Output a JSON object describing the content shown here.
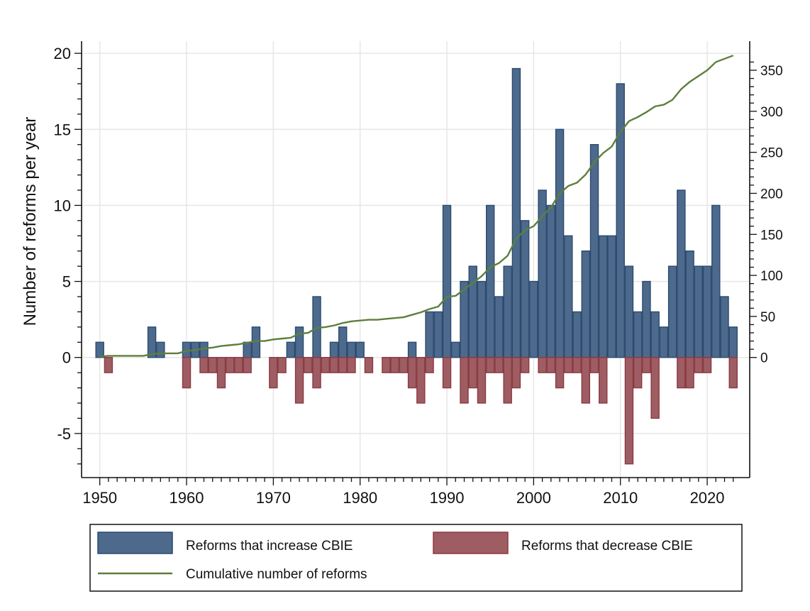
{
  "chart_data": {
    "type": "bar",
    "title": "",
    "xlabel": "",
    "ylabel": "Number of reforms per year",
    "y2label": "",
    "xlim": [
      1947.9,
      2024.9
    ],
    "ylim": [
      -7.9,
      20.8
    ],
    "y2lim": [
      0,
      370
    ],
    "grid": true,
    "x_ticks": [
      1950,
      1960,
      1970,
      1980,
      1990,
      2000,
      2010,
      2020
    ],
    "x_tick_labels": [
      "1950",
      "1960",
      "1970",
      "1980",
      "1990",
      "2000",
      "2010",
      "2020"
    ],
    "y_ticks": [
      -5,
      0,
      5,
      10,
      15,
      20
    ],
    "y_tick_labels": [
      "-5",
      "0",
      "5",
      "10",
      "15",
      "20"
    ],
    "y2_ticks": [
      0,
      50,
      100,
      150,
      200,
      250,
      300,
      350
    ],
    "y2_tick_labels": [
      "0",
      "50",
      "100",
      "150",
      "200",
      "250",
      "300",
      "350"
    ],
    "legend_position": "bottom",
    "x": [
      1950,
      1951,
      1952,
      1953,
      1954,
      1955,
      1956,
      1957,
      1958,
      1959,
      1960,
      1961,
      1962,
      1963,
      1964,
      1965,
      1966,
      1967,
      1968,
      1969,
      1970,
      1971,
      1972,
      1973,
      1974,
      1975,
      1976,
      1977,
      1978,
      1979,
      1980,
      1981,
      1982,
      1983,
      1984,
      1985,
      1986,
      1987,
      1988,
      1989,
      1990,
      1991,
      1992,
      1993,
      1994,
      1995,
      1996,
      1997,
      1998,
      1999,
      2000,
      2001,
      2002,
      2003,
      2004,
      2005,
      2006,
      2007,
      2008,
      2009,
      2010,
      2011,
      2012,
      2013,
      2014,
      2015,
      2016,
      2017,
      2018,
      2019,
      2020,
      2021,
      2022,
      2023
    ],
    "series": [
      {
        "name": "Reforms that increase CBIE",
        "type": "bar",
        "axis": "left",
        "color": "#4d6a8c",
        "edge_color": "#2b4b70",
        "values": [
          1,
          0,
          0,
          0,
          0,
          0,
          2,
          1,
          0,
          0,
          1,
          1,
          1,
          0,
          0,
          0,
          0,
          1,
          2,
          0,
          0,
          0,
          1,
          2,
          0,
          4,
          0,
          1,
          2,
          1,
          1,
          0,
          0,
          0,
          0,
          0,
          1,
          0,
          3,
          3,
          10,
          1,
          5,
          6,
          5,
          10,
          4,
          6,
          19,
          9,
          5,
          11,
          10,
          15,
          8,
          3,
          7,
          14,
          8,
          8,
          18,
          6,
          3,
          5,
          3,
          2,
          6,
          11,
          7,
          6,
          6,
          10,
          4,
          2
        ]
      },
      {
        "name": "Reforms that decrease CBIE",
        "type": "bar",
        "axis": "left",
        "color": "#9e5d62",
        "edge_color": "#8a3b42",
        "values": [
          0,
          -1,
          0,
          0,
          0,
          0,
          0,
          0,
          0,
          0,
          -2,
          0,
          -1,
          -1,
          -2,
          -1,
          -1,
          -1,
          0,
          0,
          -2,
          -1,
          0,
          -3,
          -1,
          -2,
          -1,
          -1,
          -1,
          -1,
          0,
          -1,
          0,
          -1,
          -1,
          -1,
          -2,
          -3,
          -1,
          0,
          -2,
          0,
          -3,
          -2,
          -3,
          -1,
          -1,
          -3,
          -2,
          -1,
          0,
          -1,
          -1,
          -2,
          -1,
          -1,
          -3,
          -1,
          -3,
          0,
          0,
          -7,
          -2,
          -1,
          -4,
          0,
          0,
          -2,
          -2,
          -1,
          -1,
          0,
          0,
          -2
        ]
      },
      {
        "name": "Cumulative number of reforms",
        "type": "line",
        "axis": "right",
        "color": "#5e7e3c",
        "values": [
          1,
          2,
          2,
          2,
          2,
          2,
          4,
          5,
          5,
          5,
          8,
          9,
          11,
          12,
          14,
          15,
          16,
          18,
          20,
          20,
          22,
          23,
          24,
          29,
          30,
          36,
          37,
          39,
          42,
          44,
          45,
          46,
          46,
          47,
          48,
          49,
          52,
          55,
          59,
          62,
          74,
          75,
          83,
          91,
          99,
          110,
          115,
          124,
          145,
          155,
          160,
          172,
          183,
          200,
          209,
          213,
          223,
          238,
          249,
          257,
          275,
          288,
          293,
          299,
          306,
          308,
          314,
          327,
          336,
          343,
          350,
          360,
          364,
          368
        ]
      }
    ]
  }
}
